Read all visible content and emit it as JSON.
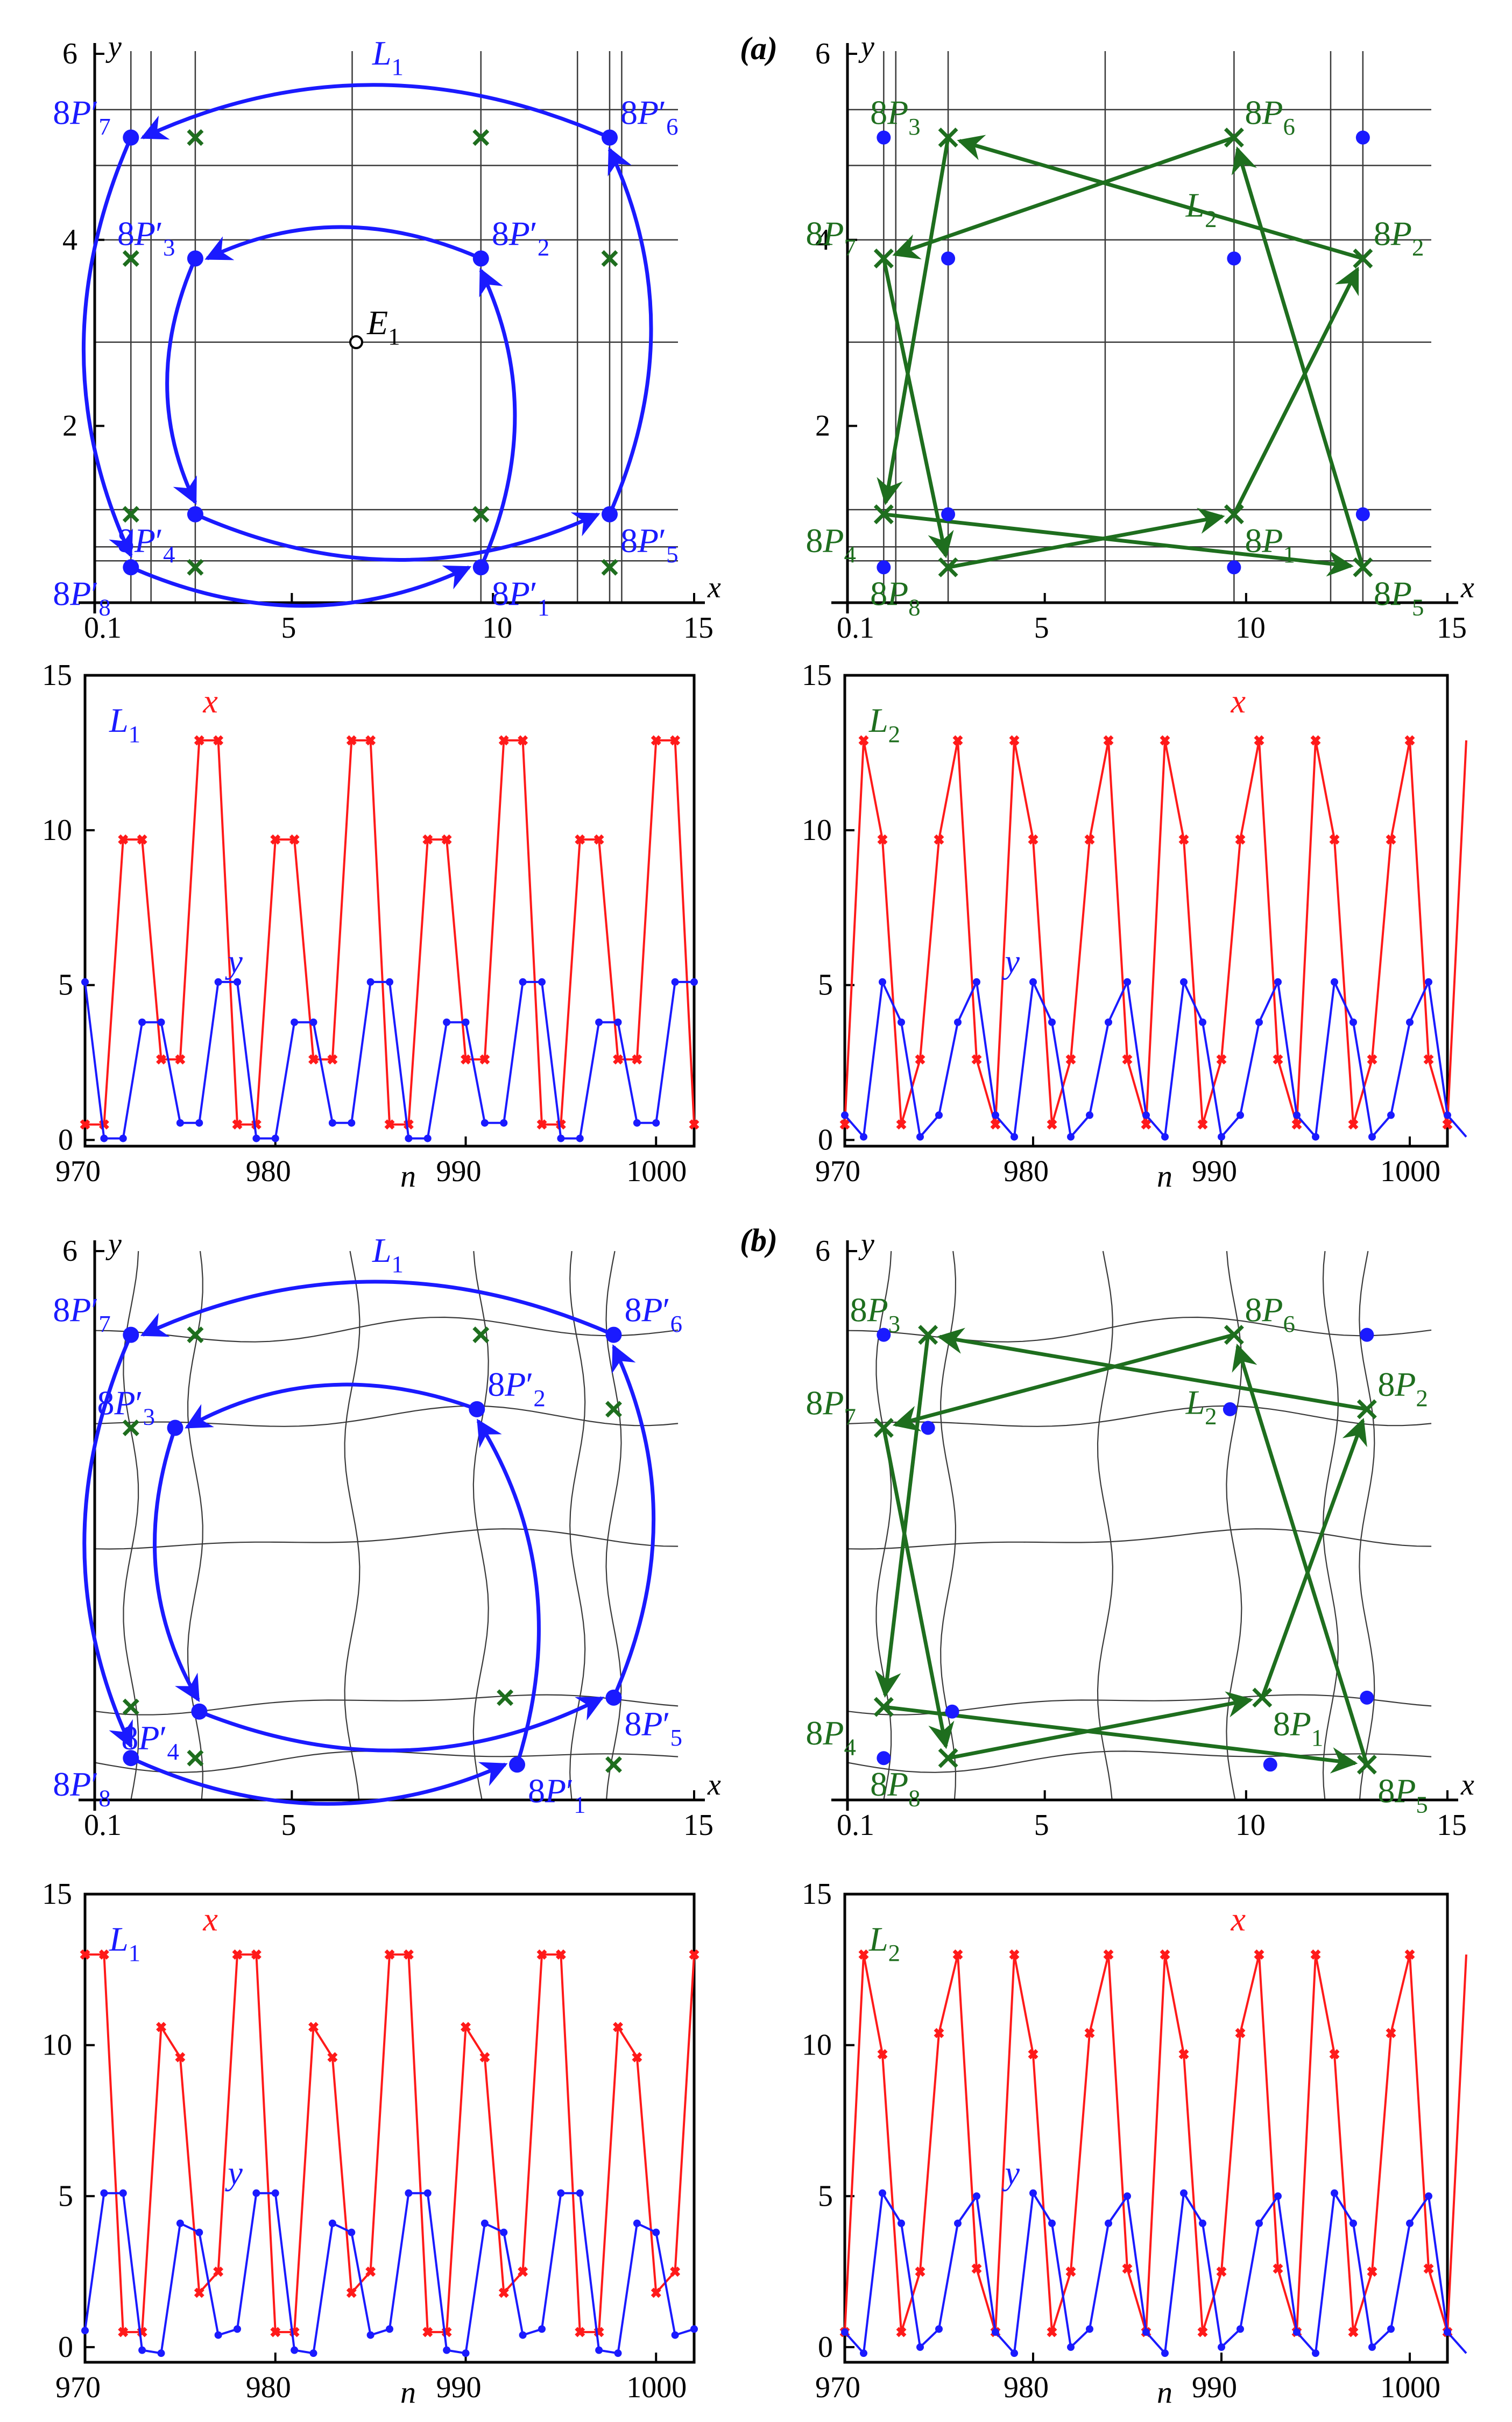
{
  "figure": {
    "panel_labels": [
      "(a)",
      "(b)"
    ]
  },
  "colors": {
    "blue": "#1a1aff",
    "green": "#1e6e1e",
    "red": "#ff1a1a",
    "grid": "#3a3a3a",
    "text": "#000000"
  },
  "chart_data": [
    {
      "type": "scatter",
      "panel": "a-left",
      "title": "",
      "xlabel": "x",
      "ylabel": "y",
      "xlim": [
        0.1,
        15
      ],
      "ylim": [
        0.1,
        6
      ],
      "xticks": [
        0.1,
        5,
        10,
        15
      ],
      "yticks": [
        2,
        4,
        6
      ],
      "curve_label": "L1",
      "equilibrium": {
        "label": "E1",
        "x": 6.6,
        "y": 2.9
      },
      "grid_x": [
        1.0,
        1.5,
        2.6,
        6.5,
        9.7,
        12.1,
        12.9,
        13.2
      ],
      "grid_y": [
        0.55,
        0.7,
        1.1,
        2.9,
        4.0,
        4.8,
        5.4
      ],
      "orbit_points": [
        {
          "label": "8P′1",
          "x": 9.7,
          "y": 0.48
        },
        {
          "label": "8P′2",
          "x": 9.7,
          "y": 3.8
        },
        {
          "label": "8P′3",
          "x": 2.6,
          "y": 3.8
        },
        {
          "label": "8P′4",
          "x": 2.6,
          "y": 1.05
        },
        {
          "label": "8P′5",
          "x": 12.9,
          "y": 1.05
        },
        {
          "label": "8P′6",
          "x": 12.9,
          "y": 5.1
        },
        {
          "label": "8P′7",
          "x": 1.0,
          "y": 5.1
        },
        {
          "label": "8P′8",
          "x": 1.0,
          "y": 0.48
        }
      ],
      "cross_points": [
        [
          2.6,
          5.1
        ],
        [
          9.7,
          5.1
        ],
        [
          1.0,
          3.8
        ],
        [
          12.9,
          3.8
        ],
        [
          1.0,
          1.05
        ],
        [
          9.7,
          1.05
        ],
        [
          2.6,
          0.48
        ],
        [
          12.9,
          0.48
        ]
      ],
      "arrows": [
        [
          "8P′8",
          "8P′1"
        ],
        [
          "8P′1",
          "8P′2"
        ],
        [
          "8P′2",
          "8P′3"
        ],
        [
          "8P′3",
          "8P′4"
        ],
        [
          "8P′4",
          "8P′5"
        ],
        [
          "8P′5",
          "8P′6"
        ],
        [
          "8P′6",
          "8P′7"
        ],
        [
          "8P′7",
          "8P′8"
        ]
      ]
    },
    {
      "type": "scatter",
      "panel": "a-right",
      "title": "(a)",
      "xlabel": "x",
      "ylabel": "y",
      "xlim": [
        0.1,
        15
      ],
      "ylim": [
        0.1,
        6
      ],
      "xticks": [
        0.1,
        5,
        10,
        15
      ],
      "yticks": [
        2,
        4,
        6
      ],
      "curve_label": "L2",
      "grid_x": [
        1.0,
        1.3,
        2.6,
        6.5,
        9.7,
        12.1,
        12.9
      ],
      "grid_y": [
        0.55,
        0.7,
        1.1,
        2.9,
        4.0,
        4.8,
        5.4
      ],
      "orbit_points": [
        {
          "label": "8P1",
          "x": 9.7,
          "y": 1.05
        },
        {
          "label": "8P2",
          "x": 12.9,
          "y": 3.8
        },
        {
          "label": "8P3",
          "x": 2.6,
          "y": 5.1
        },
        {
          "label": "8P4",
          "x": 1.0,
          "y": 1.05
        },
        {
          "label": "8P5",
          "x": 12.9,
          "y": 0.48
        },
        {
          "label": "8P6",
          "x": 9.7,
          "y": 5.1
        },
        {
          "label": "8P7",
          "x": 1.0,
          "y": 3.8
        },
        {
          "label": "8P8",
          "x": 2.6,
          "y": 0.48
        }
      ],
      "blue_points": [
        [
          1.0,
          5.1
        ],
        [
          12.9,
          5.1
        ],
        [
          2.6,
          3.8
        ],
        [
          9.7,
          3.8
        ],
        [
          2.6,
          1.05
        ],
        [
          12.9,
          1.05
        ],
        [
          1.0,
          0.48
        ],
        [
          9.7,
          0.48
        ]
      ],
      "arrows": [
        [
          "8P8",
          "8P1"
        ],
        [
          "8P1",
          "8P2"
        ],
        [
          "8P2",
          "8P3"
        ],
        [
          "8P3",
          "8P4"
        ],
        [
          "8P4",
          "8P5"
        ],
        [
          "8P5",
          "8P6"
        ],
        [
          "8P6",
          "8P7"
        ],
        [
          "8P7",
          "8P8"
        ]
      ]
    },
    {
      "type": "line",
      "panel": "a-left-timeseries",
      "curve_label": "L1",
      "xlabel": "n",
      "xlim": [
        970,
        1002
      ],
      "ylim": [
        -0.2,
        15
      ],
      "xticks": [
        970,
        980,
        990,
        1000
      ],
      "yticks": [
        0,
        5,
        10,
        15
      ],
      "x_start": 970,
      "series": [
        {
          "name": "x",
          "values": [
            0.5,
            0.5,
            9.7,
            9.7,
            2.6,
            2.6,
            12.9,
            12.9,
            0.5,
            0.5,
            9.7,
            9.7,
            2.6,
            2.6,
            12.9,
            12.9,
            0.5,
            0.5,
            9.7,
            9.7,
            2.6,
            2.6,
            12.9,
            12.9,
            0.5,
            0.5,
            9.7,
            9.7,
            2.6,
            2.6,
            12.9,
            12.9,
            0.5
          ]
        },
        {
          "name": "y",
          "values": [
            5.1,
            0.05,
            0.05,
            3.8,
            3.8,
            0.55,
            0.55,
            5.1,
            5.1,
            0.05,
            0.05,
            3.8,
            3.8,
            0.55,
            0.55,
            5.1,
            5.1,
            0.05,
            0.05,
            3.8,
            3.8,
            0.55,
            0.55,
            5.1,
            5.1,
            0.05,
            0.05,
            3.8,
            3.8,
            0.55,
            0.55,
            5.1,
            5.1
          ]
        }
      ]
    },
    {
      "type": "line",
      "panel": "a-right-timeseries",
      "curve_label": "L2",
      "xlabel": "n",
      "xlim": [
        970,
        1002
      ],
      "ylim": [
        -0.2,
        15
      ],
      "xticks": [
        970,
        980,
        990,
        1000
      ],
      "yticks": [
        0,
        5,
        10,
        15
      ],
      "x_start": 970,
      "series": [
        {
          "name": "x",
          "values": [
            0.5,
            12.9,
            9.7,
            0.5,
            2.6,
            9.7,
            12.9,
            2.6,
            0.5,
            12.9,
            9.7,
            0.5,
            2.6,
            9.7,
            12.9,
            2.6,
            0.5,
            12.9,
            9.7,
            0.5,
            2.6,
            9.7,
            12.9,
            2.6,
            0.5,
            12.9,
            9.7,
            0.5,
            2.6,
            9.7,
            12.9,
            2.6,
            0.5,
            12.9
          ]
        },
        {
          "name": "y",
          "values": [
            0.8,
            0.1,
            5.1,
            3.8,
            0.1,
            0.8,
            3.8,
            5.1,
            0.8,
            0.1,
            5.1,
            3.8,
            0.1,
            0.8,
            3.8,
            5.1,
            0.8,
            0.1,
            5.1,
            3.8,
            0.1,
            0.8,
            3.8,
            5.1,
            0.8,
            0.1,
            5.1,
            3.8,
            0.1,
            0.8,
            3.8,
            5.1,
            0.8,
            0.1
          ]
        }
      ]
    },
    {
      "type": "scatter",
      "panel": "b-left",
      "title": "",
      "xlabel": "x",
      "ylabel": "y",
      "xlim": [
        0.1,
        15
      ],
      "ylim": [
        0.1,
        6
      ],
      "xticks": [
        0.1,
        5,
        15
      ],
      "yticks": [
        6
      ],
      "curve_label": "L1",
      "orbit_points": [
        {
          "label": "8P′1",
          "x": 10.6,
          "y": 0.48
        },
        {
          "label": "8P′2",
          "x": 9.6,
          "y": 4.3
        },
        {
          "label": "8P′3",
          "x": 2.1,
          "y": 4.1
        },
        {
          "label": "8P′4",
          "x": 2.7,
          "y": 1.05
        },
        {
          "label": "8P′5",
          "x": 13.0,
          "y": 1.2
        },
        {
          "label": "8P′6",
          "x": 13.0,
          "y": 5.1
        },
        {
          "label": "8P′7",
          "x": 1.0,
          "y": 5.1
        },
        {
          "label": "8P′8",
          "x": 1.0,
          "y": 0.55
        }
      ],
      "cross_points": [
        [
          2.6,
          5.1
        ],
        [
          9.7,
          5.1
        ],
        [
          1.0,
          4.1
        ],
        [
          13.0,
          4.3
        ],
        [
          1.0,
          1.1
        ],
        [
          10.3,
          1.2
        ],
        [
          2.6,
          0.55
        ],
        [
          13.0,
          0.48
        ]
      ],
      "arrows": [
        [
          "8P′8",
          "8P′1"
        ],
        [
          "8P′1",
          "8P′2"
        ],
        [
          "8P′2",
          "8P′3"
        ],
        [
          "8P′3",
          "8P′4"
        ],
        [
          "8P′4",
          "8P′5"
        ],
        [
          "8P′5",
          "8P′6"
        ],
        [
          "8P′6",
          "8P′7"
        ],
        [
          "8P′7",
          "8P′8"
        ]
      ]
    },
    {
      "type": "scatter",
      "panel": "b-right",
      "title": "(b)",
      "xlabel": "x",
      "ylabel": "y",
      "xlim": [
        0.1,
        15
      ],
      "ylim": [
        0.1,
        6
      ],
      "xticks": [
        0.1,
        5,
        10,
        15
      ],
      "yticks": [
        6
      ],
      "curve_label": "L2",
      "orbit_points": [
        {
          "label": "8P1",
          "x": 10.4,
          "y": 1.2
        },
        {
          "label": "8P2",
          "x": 13.0,
          "y": 4.3
        },
        {
          "label": "8P3",
          "x": 2.1,
          "y": 5.1
        },
        {
          "label": "8P4",
          "x": 1.0,
          "y": 1.1
        },
        {
          "label": "8P5",
          "x": 13.0,
          "y": 0.48
        },
        {
          "label": "8P6",
          "x": 9.7,
          "y": 5.1
        },
        {
          "label": "8P7",
          "x": 1.0,
          "y": 4.1
        },
        {
          "label": "8P8",
          "x": 2.6,
          "y": 0.55
        }
      ],
      "blue_points": [
        [
          1.0,
          5.1
        ],
        [
          13.0,
          5.1
        ],
        [
          2.1,
          4.1
        ],
        [
          9.6,
          4.3
        ],
        [
          2.7,
          1.05
        ],
        [
          13.0,
          1.2
        ],
        [
          1.0,
          0.55
        ],
        [
          10.6,
          0.48
        ]
      ],
      "arrows": [
        [
          "8P8",
          "8P1"
        ],
        [
          "8P1",
          "8P2"
        ],
        [
          "8P2",
          "8P3"
        ],
        [
          "8P3",
          "8P4"
        ],
        [
          "8P4",
          "8P5"
        ],
        [
          "8P5",
          "8P6"
        ],
        [
          "8P6",
          "8P7"
        ],
        [
          "8P7",
          "8P8"
        ]
      ]
    },
    {
      "type": "line",
      "panel": "b-left-timeseries",
      "curve_label": "L1",
      "xlabel": "n",
      "xlim": [
        970,
        1002
      ],
      "ylim": [
        -0.5,
        15
      ],
      "xticks": [
        970,
        980,
        990,
        1000
      ],
      "yticks": [
        0,
        5,
        10,
        15
      ],
      "x_start": 970,
      "series": [
        {
          "name": "x",
          "values": [
            13.0,
            13.0,
            0.5,
            0.5,
            10.6,
            9.6,
            1.8,
            2.5,
            13.0,
            13.0,
            0.5,
            0.5,
            10.6,
            9.6,
            1.8,
            2.5,
            13.0,
            13.0,
            0.5,
            0.5,
            10.6,
            9.6,
            1.8,
            2.5,
            13.0,
            13.0,
            0.5,
            0.5,
            10.6,
            9.6,
            1.8,
            2.5,
            13.0
          ]
        },
        {
          "name": "y",
          "values": [
            0.55,
            5.1,
            5.1,
            -0.1,
            -0.2,
            4.1,
            3.8,
            0.4,
            0.6,
            5.1,
            5.1,
            -0.1,
            -0.2,
            4.1,
            3.8,
            0.4,
            0.6,
            5.1,
            5.1,
            -0.1,
            -0.2,
            4.1,
            3.8,
            0.4,
            0.6,
            5.1,
            5.1,
            -0.1,
            -0.2,
            4.1,
            3.8,
            0.4,
            0.6
          ]
        }
      ]
    },
    {
      "type": "line",
      "panel": "b-right-timeseries",
      "curve_label": "L2",
      "xlabel": "n",
      "xlim": [
        970,
        1002
      ],
      "ylim": [
        -0.5,
        15
      ],
      "xticks": [
        970,
        980,
        990,
        1000
      ],
      "yticks": [
        0,
        5,
        10,
        15
      ],
      "x_start": 970,
      "series": [
        {
          "name": "x",
          "values": [
            0.5,
            13.0,
            9.7,
            0.5,
            2.5,
            10.4,
            13.0,
            2.6,
            0.5,
            13.0,
            9.7,
            0.5,
            2.5,
            10.4,
            13.0,
            2.6,
            0.5,
            13.0,
            9.7,
            0.5,
            2.5,
            10.4,
            13.0,
            2.6,
            0.5,
            13.0,
            9.7,
            0.5,
            2.5,
            10.4,
            13.0,
            2.6,
            0.5,
            13.0
          ]
        },
        {
          "name": "y",
          "values": [
            0.5,
            -0.2,
            5.1,
            4.1,
            0.0,
            0.6,
            4.1,
            5.0,
            0.5,
            -0.2,
            5.1,
            4.1,
            0.0,
            0.6,
            4.1,
            5.0,
            0.5,
            -0.2,
            5.1,
            4.1,
            0.0,
            0.6,
            4.1,
            5.0,
            0.5,
            -0.2,
            5.1,
            4.1,
            0.0,
            0.6,
            4.1,
            5.0,
            0.5,
            -0.2
          ]
        }
      ]
    }
  ]
}
